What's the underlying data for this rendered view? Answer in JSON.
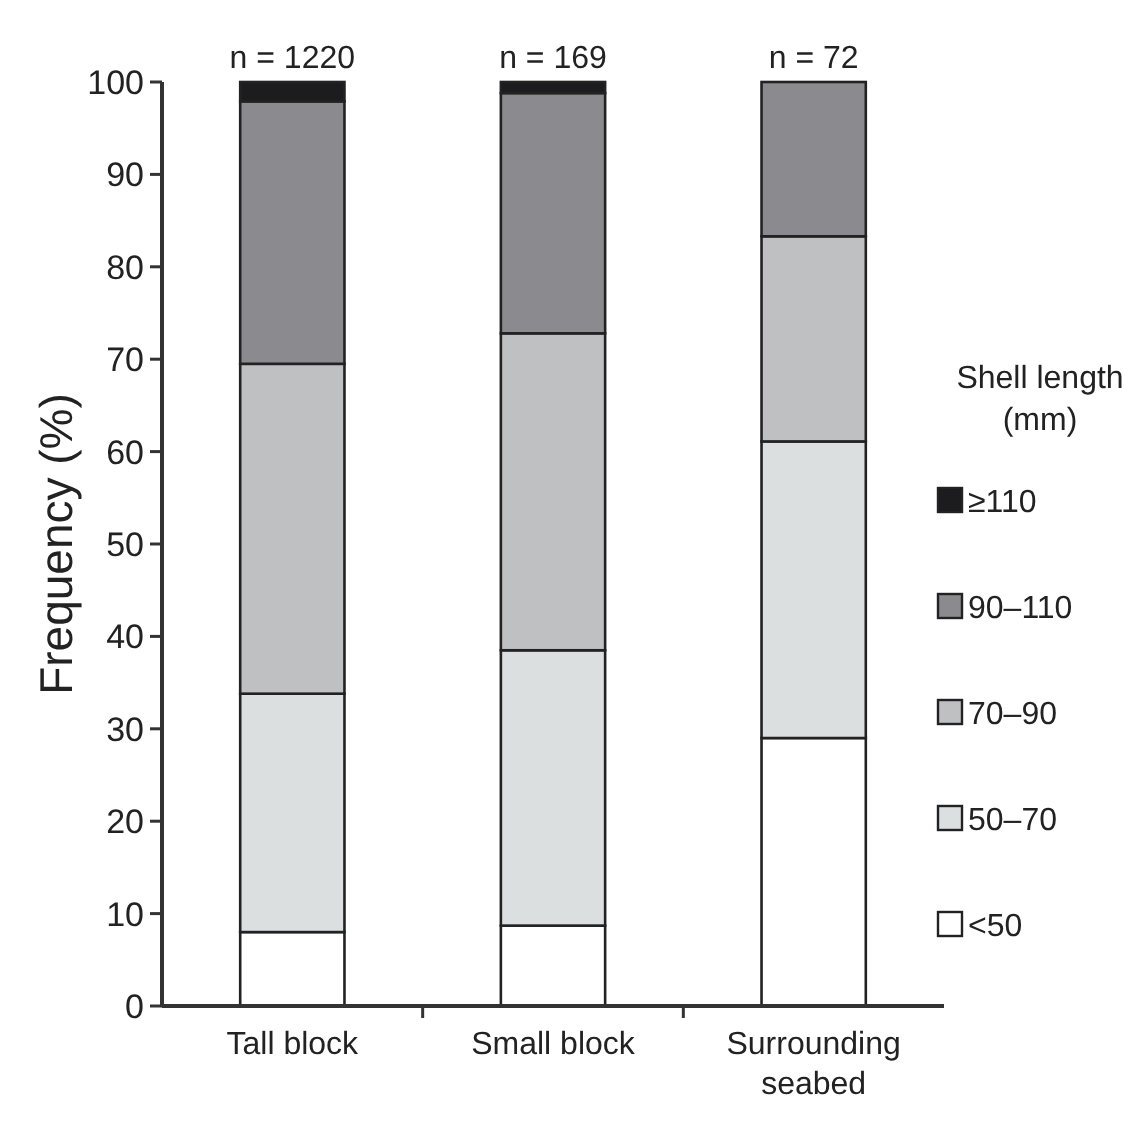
{
  "chart_data": {
    "type": "bar",
    "stacked": true,
    "ylabel": "Frequency (%)",
    "legend_title": "Shell length (mm)",
    "legend": "right",
    "categories": [
      "Tall block",
      "Small block",
      "Surrounding seabed"
    ],
    "ylim": [
      0,
      100
    ],
    "yticks": [
      0,
      10,
      20,
      30,
      40,
      50,
      60,
      70,
      80,
      90,
      100
    ],
    "series": [
      {
        "name": "<50",
        "color": "#ffffff",
        "values": [
          8.0,
          8.7,
          29.0
        ]
      },
      {
        "name": "50–70",
        "color": "#dcdfe0",
        "values": [
          25.8,
          29.8,
          32.1
        ]
      },
      {
        "name": "70–90",
        "color": "#bfc0c2",
        "values": [
          35.7,
          34.3,
          22.2
        ]
      },
      {
        "name": "90–110",
        "color": "#8b8a8e",
        "values": [
          28.4,
          26.0,
          16.7
        ]
      },
      {
        "name": "≥110",
        "color": "#1c1c1e",
        "values": [
          2.1,
          1.2,
          0
        ]
      }
    ],
    "annotations": [
      {
        "text": "n = 1220",
        "x": "Tall block",
        "y": 100
      },
      {
        "text": "n = 169",
        "x": "Small block",
        "y": 100
      },
      {
        "text": "n = 72",
        "x": "Surrounding seabed",
        "y": 100
      }
    ]
  }
}
